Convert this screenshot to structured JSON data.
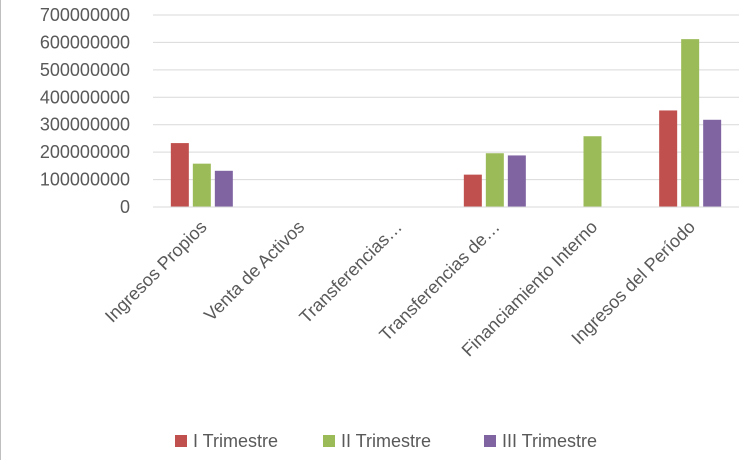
{
  "chart_data": {
    "type": "bar",
    "categories": [
      "Ingresos Propios",
      "Venta de Activos",
      "Transferencias…",
      "Transferencias de…",
      "Financiamiento Interno",
      "Ingresos del Período"
    ],
    "series": [
      {
        "name": "I Trimestre",
        "color": "#c0504d",
        "values": [
          233000000,
          0,
          0,
          118000000,
          0,
          352000000
        ]
      },
      {
        "name": "II Trimestre",
        "color": "#9bbb59",
        "values": [
          158000000,
          0,
          0,
          196000000,
          258000000,
          612000000
        ]
      },
      {
        "name": "III Trimestre",
        "color": "#8064a2",
        "values": [
          132000000,
          0,
          0,
          188000000,
          0,
          318000000
        ]
      }
    ],
    "yticks": [
      "0",
      "100000000",
      "200000000",
      "300000000",
      "400000000",
      "500000000",
      "600000000",
      "700000000"
    ],
    "ylim": [
      0,
      700000000
    ],
    "grid": true,
    "legend_position": "bottom"
  }
}
